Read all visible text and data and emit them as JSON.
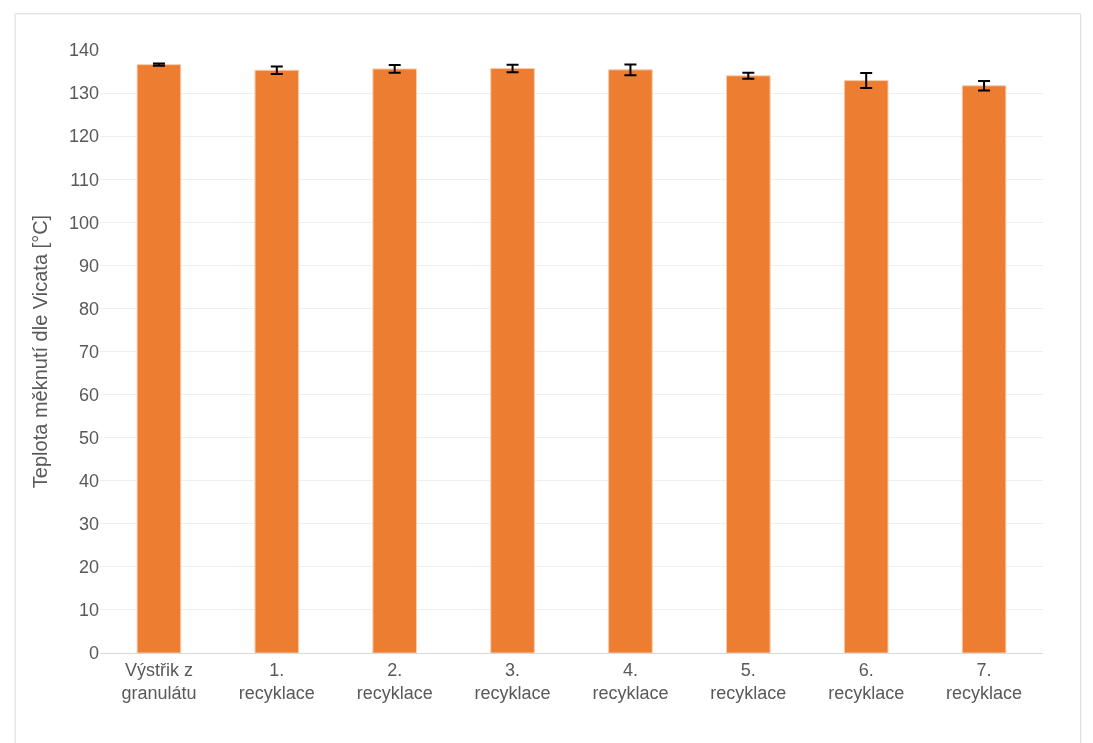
{
  "chart_data": {
    "type": "bar",
    "ylabel": "Teplota měknutí dle Vicata [°C]",
    "categories": [
      "Výstřik z granulátu",
      "1. recyklace",
      "2. recyklace",
      "3. recyklace",
      "4. recyklace",
      "5. recyklace",
      "6. recyklace",
      "7. recyklace"
    ],
    "values": [
      136.6,
      135.3,
      135.6,
      135.7,
      135.4,
      134.0,
      132.9,
      131.7
    ],
    "errors": [
      0.25,
      0.85,
      0.9,
      0.85,
      1.25,
      0.7,
      1.75,
      1.1
    ],
    "color": "#ed7d31",
    "ylim": [
      0,
      140
    ],
    "yticks": [
      0,
      10,
      20,
      30,
      40,
      50,
      60,
      70,
      80,
      90,
      100,
      110,
      120,
      130,
      140
    ],
    "grid": "y"
  }
}
